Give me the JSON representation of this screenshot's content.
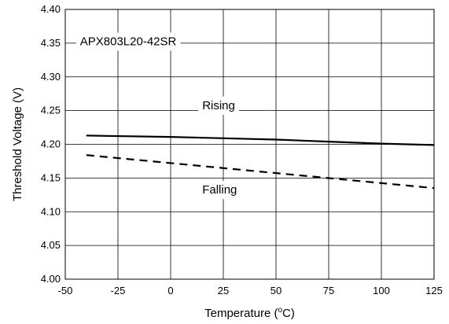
{
  "chart_data": {
    "type": "line",
    "title": "",
    "xlabel": "Temperature (",
    "xlabel_unit_sup": "o",
    "xlabel_unit_suffix": "C)",
    "ylabel": "Threshold Voltage (V)",
    "xlim": [
      -50,
      125
    ],
    "ylim": [
      4.0,
      4.4
    ],
    "xticks": [
      "-50",
      "-25",
      "0",
      "25",
      "50",
      "75",
      "100",
      "125"
    ],
    "yticks": [
      "4.00",
      "4.05",
      "4.10",
      "4.15",
      "4.20",
      "4.25",
      "4.30",
      "4.35",
      "4.40"
    ],
    "grid": true,
    "annotations": {
      "part": "APX803L20-42SR",
      "rising": "Rising",
      "falling": "Falling"
    },
    "series": [
      {
        "name": "Rising",
        "style": "solid",
        "x": [
          -40,
          0,
          25,
          50,
          75,
          100,
          125
        ],
        "y": [
          4.213,
          4.211,
          4.209,
          4.207,
          4.204,
          4.201,
          4.199
        ]
      },
      {
        "name": "Falling",
        "style": "dashed",
        "x": [
          -40,
          125
        ],
        "y": [
          4.184,
          4.135
        ]
      }
    ]
  }
}
